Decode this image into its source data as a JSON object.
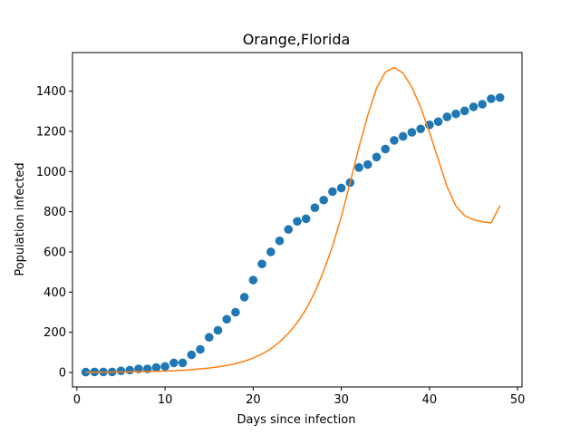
{
  "chart_data": {
    "type": "scatter",
    "title": "Orange,Florida",
    "xlabel": "Days since infection",
    "ylabel": "Population infected",
    "xlim": [
      -0.5,
      50.5
    ],
    "ylim": [
      -72,
      1592
    ],
    "xticks": [
      0,
      10,
      20,
      30,
      40,
      50
    ],
    "yticks": [
      0,
      200,
      400,
      600,
      800,
      1000,
      1200,
      1400
    ],
    "grid": false,
    "legend": "none",
    "series": [
      {
        "type": "scatter",
        "color": "#1f77b4",
        "x": [
          1,
          2,
          3,
          4,
          5,
          6,
          7,
          8,
          9,
          10,
          11,
          12,
          13,
          14,
          15,
          16,
          17,
          18,
          19,
          20,
          21,
          22,
          23,
          24,
          25,
          26,
          27,
          28,
          29,
          30,
          31,
          32,
          33,
          34,
          35,
          36,
          37,
          38,
          39,
          40,
          41,
          42,
          43,
          44,
          45,
          46,
          47,
          48
        ],
        "y": [
          2,
          3,
          3,
          3,
          8,
          12,
          18,
          18,
          25,
          30,
          48,
          48,
          88,
          115,
          175,
          210,
          265,
          300,
          375,
          460,
          540,
          600,
          655,
          712,
          752,
          765,
          820,
          858,
          900,
          918,
          945,
          1020,
          1035,
          1072,
          1112,
          1155,
          1175,
          1195,
          1212,
          1232,
          1248,
          1272,
          1287,
          1302,
          1322,
          1335,
          1362,
          1368
        ]
      },
      {
        "type": "line",
        "color": "#ff7f0e",
        "x": [
          1,
          2,
          3,
          4,
          5,
          6,
          7,
          8,
          9,
          10,
          11,
          12,
          13,
          14,
          15,
          16,
          17,
          18,
          19,
          20,
          21,
          22,
          23,
          24,
          25,
          26,
          27,
          28,
          29,
          30,
          31,
          32,
          33,
          34,
          35,
          36,
          37,
          38,
          39,
          40,
          41,
          42,
          43,
          44,
          45,
          46,
          47,
          48
        ],
        "y": [
          1,
          1,
          2,
          2,
          3,
          3,
          4,
          5,
          6,
          7,
          9,
          11,
          14,
          18,
          22,
          28,
          35,
          44,
          56,
          72,
          92,
          118,
          152,
          195,
          248,
          315,
          400,
          505,
          628,
          775,
          945,
          1120,
          1280,
          1415,
          1495,
          1518,
          1490,
          1420,
          1320,
          1195,
          1060,
          925,
          828,
          780,
          760,
          750,
          745,
          830
        ]
      }
    ]
  }
}
